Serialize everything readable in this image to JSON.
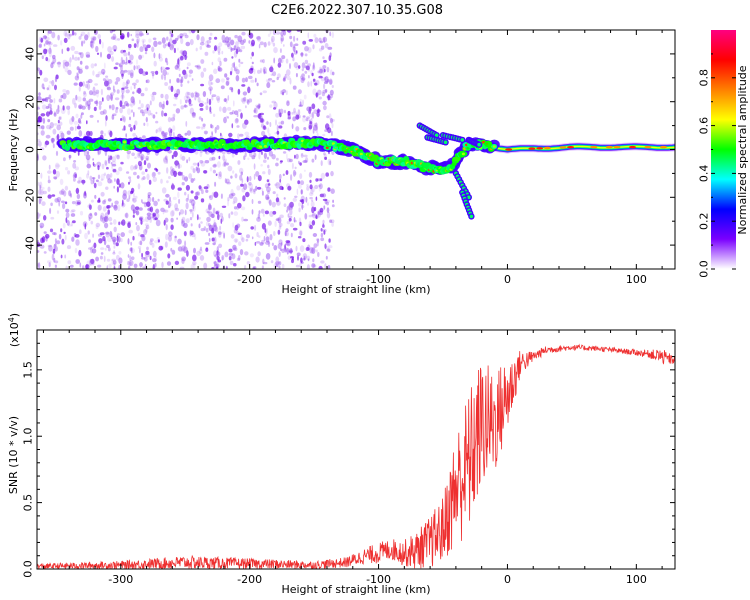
{
  "figure": {
    "title": "C2E6.2022.307.10.35.G08"
  },
  "chart_data": [
    {
      "type": "heatmap",
      "xlabel": "Height of straight line (km)",
      "ylabel": "Frequency (Hz)",
      "xlim": [
        -365,
        130
      ],
      "ylim": [
        -50,
        50
      ],
      "x_ticks": [
        -300,
        -200,
        -100,
        0,
        100
      ],
      "y_ticks": [
        -40,
        -20,
        0,
        20,
        40
      ],
      "colorbar": {
        "label": "Normalized spectral amplitude",
        "range": [
          0,
          1
        ],
        "ticks": [
          0.0,
          0.2,
          0.4,
          0.6,
          0.8
        ],
        "tick_labels": [
          "0.0",
          "0.2",
          "0.4",
          "0.6",
          "0.8"
        ],
        "colors": [
          "#ffffff",
          "#7a00ff",
          "#0000ff",
          "#00ffff",
          "#00ff00",
          "#ffff00",
          "#ff8000",
          "#ff0000",
          "#ff0080"
        ]
      },
      "trace": [
        {
          "x": -345,
          "y": 2
        },
        {
          "x": -300,
          "y": 2
        },
        {
          "x": -250,
          "y": 2
        },
        {
          "x": -200,
          "y": 2
        },
        {
          "x": -150,
          "y": 3
        },
        {
          "x": -120,
          "y": 0
        },
        {
          "x": -100,
          "y": -5
        },
        {
          "x": -80,
          "y": -5
        },
        {
          "x": -60,
          "y": -8
        },
        {
          "x": -45,
          "y": -8
        },
        {
          "x": -30,
          "y": 2
        },
        {
          "x": -20,
          "y": 2
        },
        {
          "x": 0,
          "y": 0
        },
        {
          "x": 50,
          "y": 1
        },
        {
          "x": 130,
          "y": 1
        }
      ]
    },
    {
      "type": "line",
      "xlabel": "Height of straight line (km)",
      "ylabel": "SNR (10 * v/v)",
      "y_multiplier_label": "(x10",
      "y_multiplier_exp": "4",
      "xlim": [
        -365,
        130
      ],
      "ylim": [
        0,
        1.8
      ],
      "x_ticks": [
        -300,
        -200,
        -100,
        0,
        100
      ],
      "y_ticks": [
        0.0,
        0.5,
        1.0,
        1.5
      ],
      "y_tick_labels": [
        "0.0",
        "0.5",
        "1.0",
        "1.5"
      ],
      "line_color": "#ee3030",
      "series": [
        {
          "x": [
            -365,
            -300,
            -250,
            -200,
            -150,
            -125,
            -110,
            -100,
            -90,
            -80,
            -70,
            -60,
            -50,
            -40,
            -30,
            -20,
            -10,
            0,
            10,
            20,
            30,
            50,
            70,
            90,
            110,
            120,
            130
          ],
          "y": [
            0.02,
            0.03,
            0.05,
            0.04,
            0.03,
            0.05,
            0.1,
            0.12,
            0.15,
            0.12,
            0.14,
            0.2,
            0.3,
            0.6,
            0.8,
            1.1,
            1.1,
            1.3,
            1.55,
            1.6,
            1.65,
            1.67,
            1.66,
            1.64,
            1.62,
            1.6,
            1.57
          ],
          "band": [
            0.02,
            0.03,
            0.05,
            0.04,
            0.03,
            0.04,
            0.06,
            0.08,
            0.08,
            0.1,
            0.15,
            0.2,
            0.25,
            0.45,
            0.55,
            0.5,
            0.4,
            0.3,
            0.1,
            0.04,
            0.03,
            0.02,
            0.02,
            0.02,
            0.03,
            0.06,
            0.03
          ]
        }
      ]
    }
  ]
}
